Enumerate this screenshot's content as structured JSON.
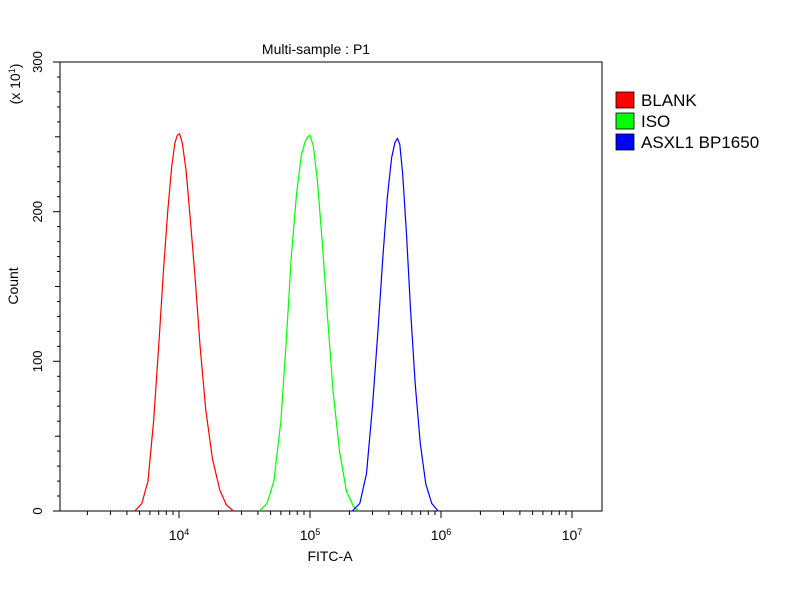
{
  "chart_data": {
    "type": "line",
    "title": "Multi-sample : P1",
    "xlabel": "FITC-A",
    "ylabel": "Count",
    "y_scale_note": {
      "prefix": "(x 10",
      "exponent": "1",
      "suffix": ")"
    },
    "x_scale": "log",
    "xlim": [
      1000,
      20000000
    ],
    "ylim": [
      0,
      300
    ],
    "x_major_ticks": [
      {
        "value": 10000,
        "base": "10",
        "exp": "4"
      },
      {
        "value": 100000,
        "base": "10",
        "exp": "5"
      },
      {
        "value": 1000000,
        "base": "10",
        "exp": "6"
      },
      {
        "value": 10000000,
        "base": "10",
        "exp": "7"
      }
    ],
    "y_ticks": [
      0,
      100,
      200,
      300
    ],
    "grid": false,
    "legend_position": "right",
    "series": [
      {
        "name": "BLANK",
        "color": "#ff0000",
        "points": [
          [
            4600,
            0
          ],
          [
            5200,
            5
          ],
          [
            5800,
            20
          ],
          [
            6400,
            60
          ],
          [
            7000,
            110
          ],
          [
            7600,
            160
          ],
          [
            8200,
            200
          ],
          [
            8800,
            230
          ],
          [
            9300,
            246
          ],
          [
            9700,
            251
          ],
          [
            10100,
            252
          ],
          [
            10600,
            246
          ],
          [
            11300,
            228
          ],
          [
            12200,
            195
          ],
          [
            13300,
            155
          ],
          [
            14500,
            110
          ],
          [
            16000,
            68
          ],
          [
            18000,
            35
          ],
          [
            20500,
            14
          ],
          [
            23000,
            4
          ],
          [
            26000,
            0
          ]
        ]
      },
      {
        "name": "ISO",
        "color": "#00ff00",
        "points": [
          [
            41000,
            0
          ],
          [
            47000,
            5
          ],
          [
            53000,
            20
          ],
          [
            60000,
            60
          ],
          [
            66000,
            115
          ],
          [
            72000,
            170
          ],
          [
            79000,
            212
          ],
          [
            86000,
            238
          ],
          [
            92000,
            247
          ],
          [
            96000,
            250
          ],
          [
            100000,
            251
          ],
          [
            106000,
            244
          ],
          [
            114000,
            220
          ],
          [
            124000,
            180
          ],
          [
            136000,
            130
          ],
          [
            150000,
            80
          ],
          [
            168000,
            40
          ],
          [
            190000,
            13
          ],
          [
            215000,
            3
          ],
          [
            235000,
            0
          ]
        ]
      },
      {
        "name": "ASXL1 BP1650",
        "color": "#0000ff",
        "points": [
          [
            210000,
            0
          ],
          [
            240000,
            5
          ],
          [
            270000,
            25
          ],
          [
            300000,
            70
          ],
          [
            330000,
            120
          ],
          [
            360000,
            170
          ],
          [
            390000,
            210
          ],
          [
            420000,
            236
          ],
          [
            445000,
            246
          ],
          [
            465000,
            249
          ],
          [
            485000,
            245
          ],
          [
            510000,
            225
          ],
          [
            545000,
            185
          ],
          [
            585000,
            135
          ],
          [
            635000,
            85
          ],
          [
            695000,
            45
          ],
          [
            765000,
            18
          ],
          [
            850000,
            5
          ],
          [
            950000,
            0
          ]
        ]
      }
    ]
  }
}
